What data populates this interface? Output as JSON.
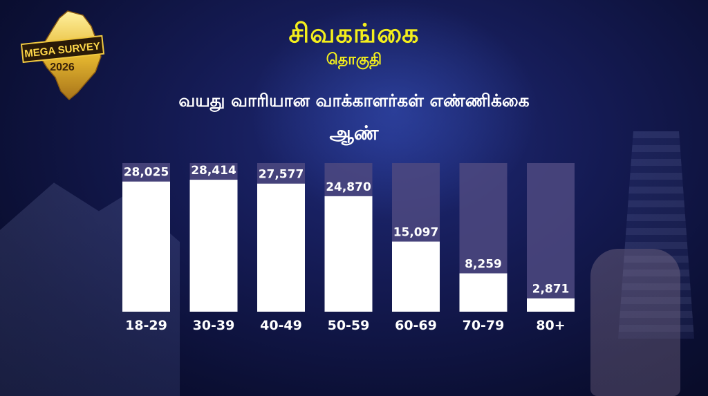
{
  "header": {
    "constituency": "சிவகங்கை",
    "constituency_label": "தொகுதி",
    "subtitle": "வயது வாரியான வாக்காளர்கள் எண்ணிக்கை",
    "gender": "ஆண்"
  },
  "logo": {
    "line1": "MEGA SURVEY",
    "line2": "2026"
  },
  "colors": {
    "title": "#f3ee1c",
    "bar": "#ffffff",
    "track": "#4e4980"
  },
  "chart_data": {
    "type": "bar",
    "title": "வயது வாரியான வாக்காளர்கள் எண்ணிக்கை",
    "categories": [
      "18-29",
      "30-39",
      "40-49",
      "50-59",
      "60-69",
      "70-79",
      "80+"
    ],
    "values": [
      28025,
      28414,
      27577,
      24870,
      15097,
      8259,
      2871
    ],
    "value_labels": [
      "28,025",
      "28,414",
      "27,577",
      "24,870",
      "15,097",
      "8,259",
      "2,871"
    ],
    "ylim": [
      0,
      32000
    ],
    "grid": false,
    "legend": "none"
  }
}
